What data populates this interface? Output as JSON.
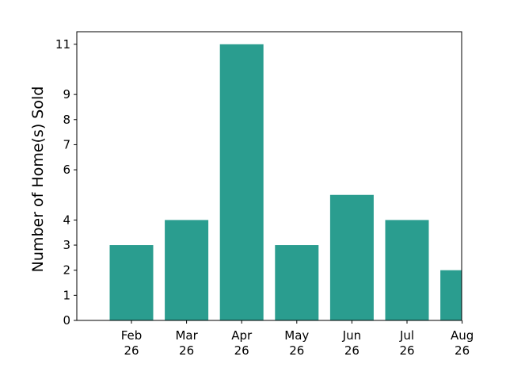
{
  "chart_data": {
    "type": "bar",
    "categories": [
      "Feb 26",
      "Mar 26",
      "Apr 26",
      "May 26",
      "Jun 26",
      "Jul 26",
      "Aug 26"
    ],
    "category_labels": [
      [
        "Feb",
        "26"
      ],
      [
        "Mar",
        "26"
      ],
      [
        "Apr",
        "26"
      ],
      [
        "May",
        "26"
      ],
      [
        "Jun",
        "26"
      ],
      [
        "Jul",
        "26"
      ],
      [
        "Aug",
        "26"
      ]
    ],
    "values": [
      3,
      4,
      11,
      3,
      5,
      4,
      2
    ],
    "title": "",
    "xlabel": "",
    "ylabel": "Number of Home(s) Sold",
    "ylim": [
      0,
      11.5
    ],
    "yticks": [
      0,
      1,
      2,
      3,
      4,
      6,
      7,
      8,
      9,
      11
    ],
    "grid": false,
    "bar_color": "#2a9d8f"
  }
}
